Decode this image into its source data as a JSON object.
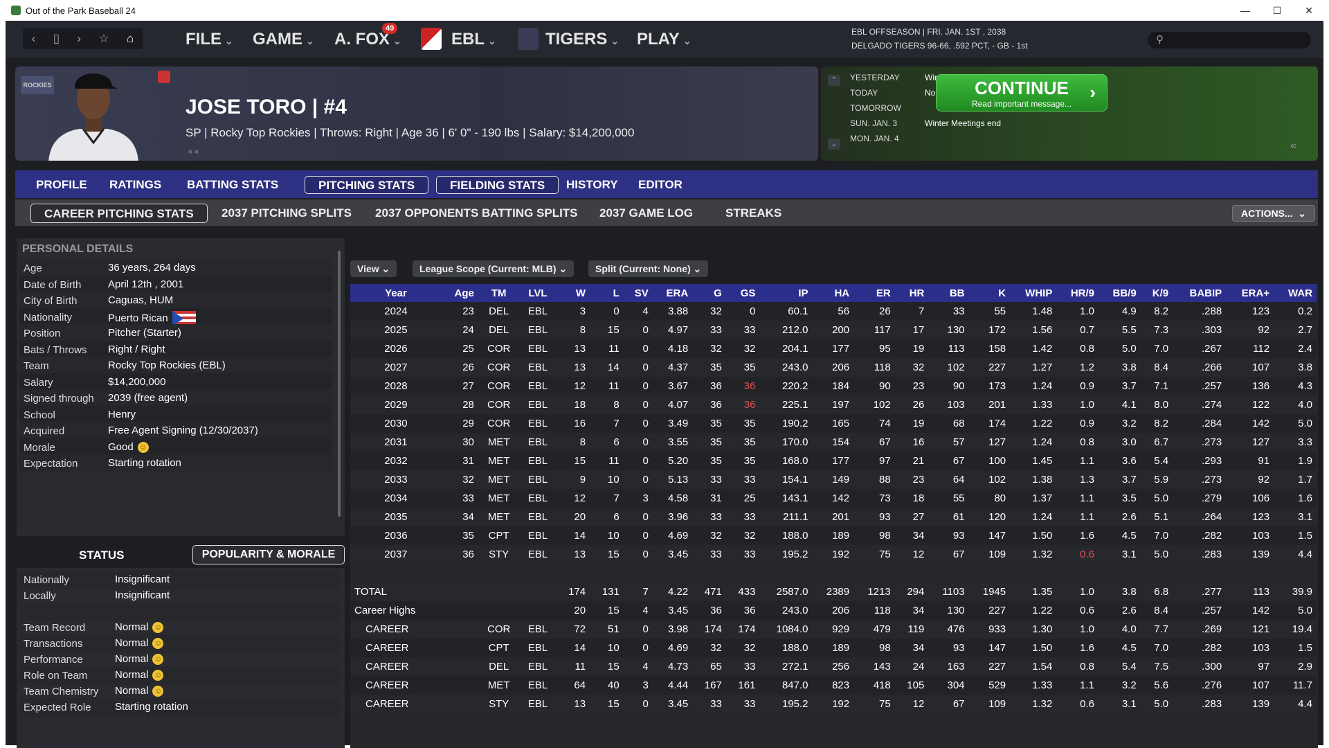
{
  "window": {
    "title": "Out of the Park Baseball 24",
    "min_icon": "minimize-icon",
    "max_icon": "maximize-icon",
    "close_icon": "close-icon"
  },
  "nav": {
    "menus": [
      "FILE",
      "GAME",
      "A. FOX",
      "EBL",
      "TIGERS",
      "PLAY"
    ],
    "badge": "49",
    "status_line1": "EBL OFFSEASON  |  FRI. JAN. 1ST , 2038",
    "status_line2": "DELGADO TIGERS  96-66, .592 PCT, - GB - 1st"
  },
  "player": {
    "name": "JOSE TORO  |  #4",
    "info": "SP | Rocky Top Rockies  |  Throws: Right  |  Age 36  |  6' 0\" - 190 lbs  |  Salary: $14,200,000",
    "team_logo_text": "ROCKIES"
  },
  "calendar": {
    "rows": [
      {
        "label": "YESTERDAY",
        "event": "Winter Meetings start"
      },
      {
        "label": "TODAY",
        "event": "No Game."
      },
      {
        "label": "TOMORROW",
        "event": ""
      },
      {
        "label": "SUN. JAN. 3",
        "event": "Winter Meetings end"
      },
      {
        "label": "MON. JAN. 4",
        "event": ""
      }
    ]
  },
  "continue": {
    "label": "CONTINUE",
    "sub": "Read important message..."
  },
  "tabs": [
    "PROFILE",
    "RATINGS",
    "BATTING STATS",
    "PITCHING STATS",
    "FIELDING STATS",
    "HISTORY",
    "EDITOR"
  ],
  "subtabs": [
    "CAREER PITCHING STATS",
    "2037 PITCHING SPLITS",
    "2037 OPPONENTS BATTING SPLITS",
    "2037 GAME LOG",
    "STREAKS"
  ],
  "actions": "ACTIONS...",
  "personal": {
    "title": "PERSONAL DETAILS",
    "rows": [
      {
        "k": "Age",
        "v": "36 years, 264 days"
      },
      {
        "k": "Date of Birth",
        "v": "April 12th , 2001"
      },
      {
        "k": "City of Birth",
        "v": "Caguas, HUM"
      },
      {
        "k": "Nationality",
        "v": "Puerto Rican"
      },
      {
        "k": "Position",
        "v": "Pitcher (Starter)"
      },
      {
        "k": "Bats / Throws",
        "v": "Right / Right"
      },
      {
        "k": "Team",
        "v": "Rocky Top Rockies (EBL)"
      },
      {
        "k": "Salary",
        "v": "$14,200,000"
      },
      {
        "k": "Signed through",
        "v": "2039 (free agent)"
      },
      {
        "k": "School",
        "v": "Henry"
      },
      {
        "k": "Acquired",
        "v": "Free Agent Signing (12/30/2037)"
      },
      {
        "k": "Morale",
        "v": "Good"
      },
      {
        "k": "Expectation",
        "v": "Starting rotation"
      }
    ]
  },
  "status": {
    "title": "STATUS",
    "button": "POPULARITY & MORALE",
    "rows": [
      {
        "k": "Nationally",
        "v": "Insignificant",
        "smiley": false
      },
      {
        "k": "Locally",
        "v": "Insignificant",
        "smiley": false
      },
      {
        "k": "",
        "v": "",
        "smiley": false
      },
      {
        "k": "Team Record",
        "v": "Normal",
        "smiley": true
      },
      {
        "k": "Transactions",
        "v": "Normal",
        "smiley": true
      },
      {
        "k": "Performance",
        "v": "Normal",
        "smiley": true
      },
      {
        "k": "Role on Team",
        "v": "Normal",
        "smiley": true
      },
      {
        "k": "Team Chemistry",
        "v": "Normal",
        "smiley": true
      },
      {
        "k": "Expected Role",
        "v": "Starting rotation",
        "smiley": false
      }
    ]
  },
  "filters": {
    "view": "View",
    "scope": "League Scope (Current: MLB)",
    "split": "Split (Current: None)"
  },
  "table": {
    "columns": [
      "Year",
      "Age",
      "TM",
      "LVL",
      "W",
      "L",
      "SV",
      "ERA",
      "G",
      "GS",
      "IP",
      "HA",
      "ER",
      "HR",
      "BB",
      "K",
      "WHIP",
      "HR/9",
      "BB/9",
      "K/9",
      "BABIP",
      "ERA+",
      "WAR"
    ],
    "rows": [
      [
        "2024",
        "23",
        "DEL",
        "EBL",
        "3",
        "0",
        "4",
        "3.88",
        "32",
        "0",
        "60.1",
        "56",
        "26",
        "7",
        "33",
        "55",
        "1.48",
        "1.0",
        "4.9",
        "8.2",
        ".288",
        "123",
        "0.2"
      ],
      [
        "2025",
        "24",
        "DEL",
        "EBL",
        "8",
        "15",
        "0",
        "4.97",
        "33",
        "33",
        "212.0",
        "200",
        "117",
        "17",
        "130",
        "172",
        "1.56",
        "0.7",
        "5.5",
        "7.3",
        ".303",
        "92",
        "2.7"
      ],
      [
        "2026",
        "25",
        "COR",
        "EBL",
        "13",
        "11",
        "0",
        "4.18",
        "32",
        "32",
        "204.1",
        "177",
        "95",
        "19",
        "113",
        "158",
        "1.42",
        "0.8",
        "5.0",
        "7.0",
        ".267",
        "112",
        "2.4"
      ],
      [
        "2027",
        "26",
        "COR",
        "EBL",
        "13",
        "14",
        "0",
        "4.37",
        "35",
        "35",
        "243.0",
        "206",
        "118",
        "32",
        "102",
        "227",
        "1.27",
        "1.2",
        "3.8",
        "8.4",
        ".266",
        "107",
        "3.8"
      ],
      [
        "2028",
        "27",
        "COR",
        "EBL",
        "12",
        "11",
        "0",
        "3.67",
        "36",
        "36",
        "220.2",
        "184",
        "90",
        "23",
        "90",
        "173",
        "1.24",
        "0.9",
        "3.7",
        "7.1",
        ".257",
        "136",
        "4.3"
      ],
      [
        "2029",
        "28",
        "COR",
        "EBL",
        "18",
        "8",
        "0",
        "4.07",
        "36",
        "36",
        "225.1",
        "197",
        "102",
        "26",
        "103",
        "201",
        "1.33",
        "1.0",
        "4.1",
        "8.0",
        ".274",
        "122",
        "4.0"
      ],
      [
        "2030",
        "29",
        "COR",
        "EBL",
        "16",
        "7",
        "0",
        "3.49",
        "35",
        "35",
        "190.2",
        "165",
        "74",
        "19",
        "68",
        "174",
        "1.22",
        "0.9",
        "3.2",
        "8.2",
        ".284",
        "142",
        "5.0"
      ],
      [
        "2031",
        "30",
        "MET",
        "EBL",
        "8",
        "6",
        "0",
        "3.55",
        "35",
        "35",
        "170.0",
        "154",
        "67",
        "16",
        "57",
        "127",
        "1.24",
        "0.8",
        "3.0",
        "6.7",
        ".273",
        "127",
        "3.3"
      ],
      [
        "2032",
        "31",
        "MET",
        "EBL",
        "15",
        "11",
        "0",
        "5.20",
        "35",
        "35",
        "168.0",
        "177",
        "97",
        "21",
        "67",
        "100",
        "1.45",
        "1.1",
        "3.6",
        "5.4",
        ".293",
        "91",
        "1.9"
      ],
      [
        "2033",
        "32",
        "MET",
        "EBL",
        "9",
        "10",
        "0",
        "5.13",
        "33",
        "33",
        "154.1",
        "149",
        "88",
        "23",
        "64",
        "102",
        "1.38",
        "1.3",
        "3.7",
        "5.9",
        ".273",
        "92",
        "1.7"
      ],
      [
        "2034",
        "33",
        "MET",
        "EBL",
        "12",
        "7",
        "3",
        "4.58",
        "31",
        "25",
        "143.1",
        "142",
        "73",
        "18",
        "55",
        "80",
        "1.37",
        "1.1",
        "3.5",
        "5.0",
        ".279",
        "106",
        "1.6"
      ],
      [
        "2035",
        "34",
        "MET",
        "EBL",
        "20",
        "6",
        "0",
        "3.96",
        "33",
        "33",
        "211.1",
        "201",
        "93",
        "27",
        "61",
        "120",
        "1.24",
        "1.1",
        "2.6",
        "5.1",
        ".264",
        "123",
        "3.1"
      ],
      [
        "2036",
        "35",
        "CPT",
        "EBL",
        "14",
        "10",
        "0",
        "4.69",
        "32",
        "32",
        "188.0",
        "189",
        "98",
        "34",
        "93",
        "147",
        "1.50",
        "1.6",
        "4.5",
        "7.0",
        ".282",
        "103",
        "1.5"
      ],
      [
        "2037",
        "36",
        "STY",
        "EBL",
        "13",
        "15",
        "0",
        "3.45",
        "33",
        "33",
        "195.2",
        "192",
        "75",
        "12",
        "67",
        "109",
        "1.32",
        "0.6",
        "3.1",
        "5.0",
        ".283",
        "139",
        "4.4"
      ]
    ],
    "red_cells": [
      [
        4,
        9
      ],
      [
        5,
        9
      ],
      [
        13,
        17
      ]
    ],
    "summary": [
      [
        "TOTAL",
        "",
        "",
        "",
        "174",
        "131",
        "7",
        "4.22",
        "471",
        "433",
        "2587.0",
        "2389",
        "1213",
        "294",
        "1103",
        "1945",
        "1.35",
        "1.0",
        "3.8",
        "6.8",
        ".277",
        "113",
        "39.9"
      ],
      [
        "Career Highs",
        "",
        "",
        "",
        "20",
        "15",
        "4",
        "3.45",
        "36",
        "36",
        "243.0",
        "206",
        "118",
        "34",
        "130",
        "227",
        "1.22",
        "0.6",
        "2.6",
        "8.4",
        ".257",
        "142",
        "5.0"
      ],
      [
        "CAREER",
        "",
        "COR",
        "EBL",
        "72",
        "51",
        "0",
        "3.98",
        "174",
        "174",
        "1084.0",
        "929",
        "479",
        "119",
        "476",
        "933",
        "1.30",
        "1.0",
        "4.0",
        "7.7",
        ".269",
        "121",
        "19.4"
      ],
      [
        "CAREER",
        "",
        "CPT",
        "EBL",
        "14",
        "10",
        "0",
        "4.69",
        "32",
        "32",
        "188.0",
        "189",
        "98",
        "34",
        "93",
        "147",
        "1.50",
        "1.6",
        "4.5",
        "7.0",
        ".282",
        "103",
        "1.5"
      ],
      [
        "CAREER",
        "",
        "DEL",
        "EBL",
        "11",
        "15",
        "4",
        "4.73",
        "65",
        "33",
        "272.1",
        "256",
        "143",
        "24",
        "163",
        "227",
        "1.54",
        "0.8",
        "5.4",
        "7.5",
        ".300",
        "97",
        "2.9"
      ],
      [
        "CAREER",
        "",
        "MET",
        "EBL",
        "64",
        "40",
        "3",
        "4.44",
        "167",
        "161",
        "847.0",
        "823",
        "418",
        "105",
        "304",
        "529",
        "1.33",
        "1.1",
        "3.2",
        "5.6",
        ".276",
        "107",
        "11.7"
      ],
      [
        "CAREER",
        "",
        "STY",
        "EBL",
        "13",
        "15",
        "0",
        "3.45",
        "33",
        "33",
        "195.2",
        "192",
        "75",
        "12",
        "67",
        "109",
        "1.32",
        "0.6",
        "3.1",
        "5.0",
        ".283",
        "139",
        "4.4"
      ]
    ]
  }
}
